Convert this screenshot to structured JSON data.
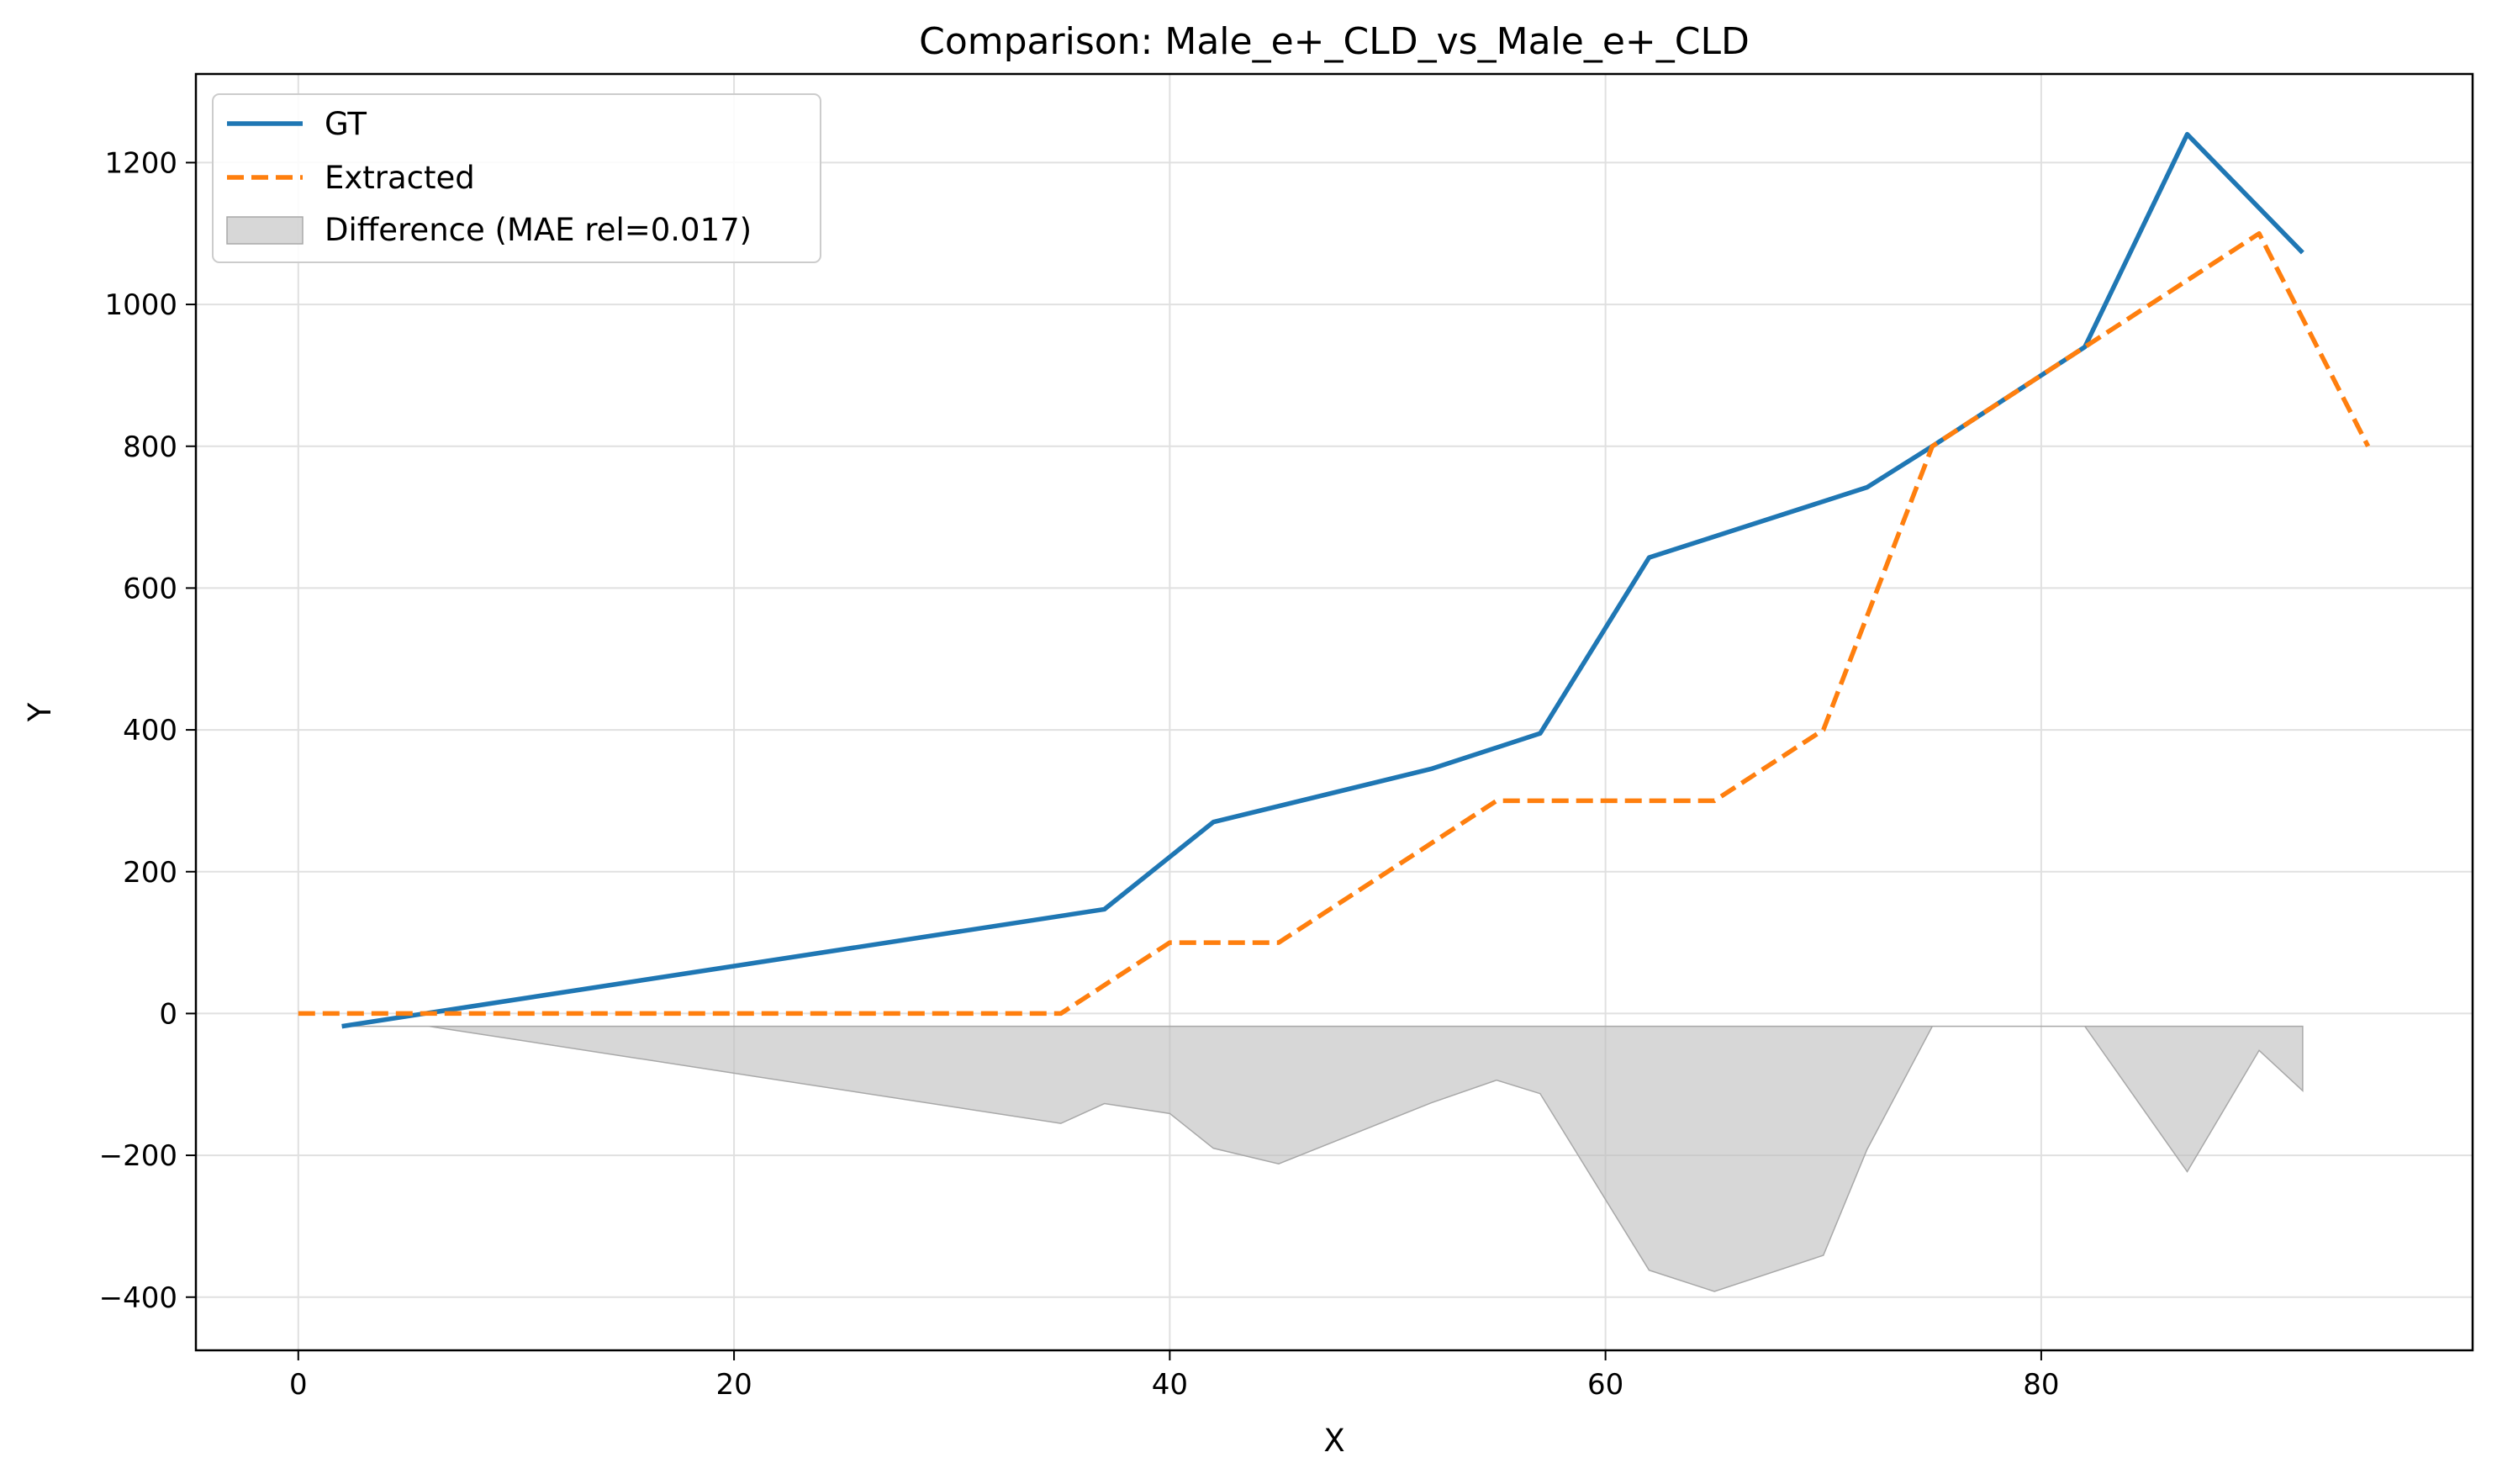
{
  "chart_data": {
    "type": "line",
    "title": "Comparison: Male_e+_CLD_vs_Male_e+_CLD",
    "xlabel": "X",
    "ylabel": "Y",
    "xlim": [
      -4.7,
      99.8
    ],
    "ylim": [
      -475,
      1325
    ],
    "xticks": [
      0,
      20,
      40,
      60,
      80
    ],
    "yticks": [
      -400,
      -200,
      0,
      200,
      400,
      600,
      800,
      1000,
      1200
    ],
    "xtick_labels": [
      "0",
      "20",
      "40",
      "60",
      "80"
    ],
    "ytick_labels": [
      "−400",
      "−200",
      "0",
      "200",
      "400",
      "600",
      "800",
      "1000",
      "1200"
    ],
    "grid": true,
    "legend_position": "top-left",
    "series": [
      {
        "name": "GT",
        "style": "solid",
        "color": "#1f77b4",
        "x": [
          2,
          37,
          42,
          52,
          57,
          62,
          72,
          75,
          82,
          86.7,
          92
        ],
        "y": [
          -18,
          147,
          270,
          345,
          395,
          643,
          742,
          800,
          940,
          1240,
          1073
        ]
      },
      {
        "name": "Extracted",
        "style": "dashed",
        "color": "#ff7f0e",
        "x": [
          0,
          35,
          40,
          45,
          55,
          65,
          70,
          75,
          82,
          90,
          95
        ],
        "y": [
          0,
          0,
          100,
          100,
          300,
          300,
          400,
          800,
          940,
          1100,
          800
        ]
      },
      {
        "name": "Difference (MAE rel=0.017)",
        "style": "fill",
        "color": "#bdbdbd",
        "baseline": -18,
        "x": [
          2,
          6,
          35,
          37,
          40,
          42,
          45,
          52,
          55,
          57,
          62,
          65,
          70,
          72,
          75,
          82,
          86.7,
          90,
          92
        ],
        "y": [
          -18,
          -18,
          -155,
          -127,
          -141,
          -190,
          -212,
          -126,
          -94,
          -113,
          -362,
          -392,
          -341,
          -192,
          -18,
          -18,
          -223,
          -52,
          -109
        ]
      }
    ]
  }
}
